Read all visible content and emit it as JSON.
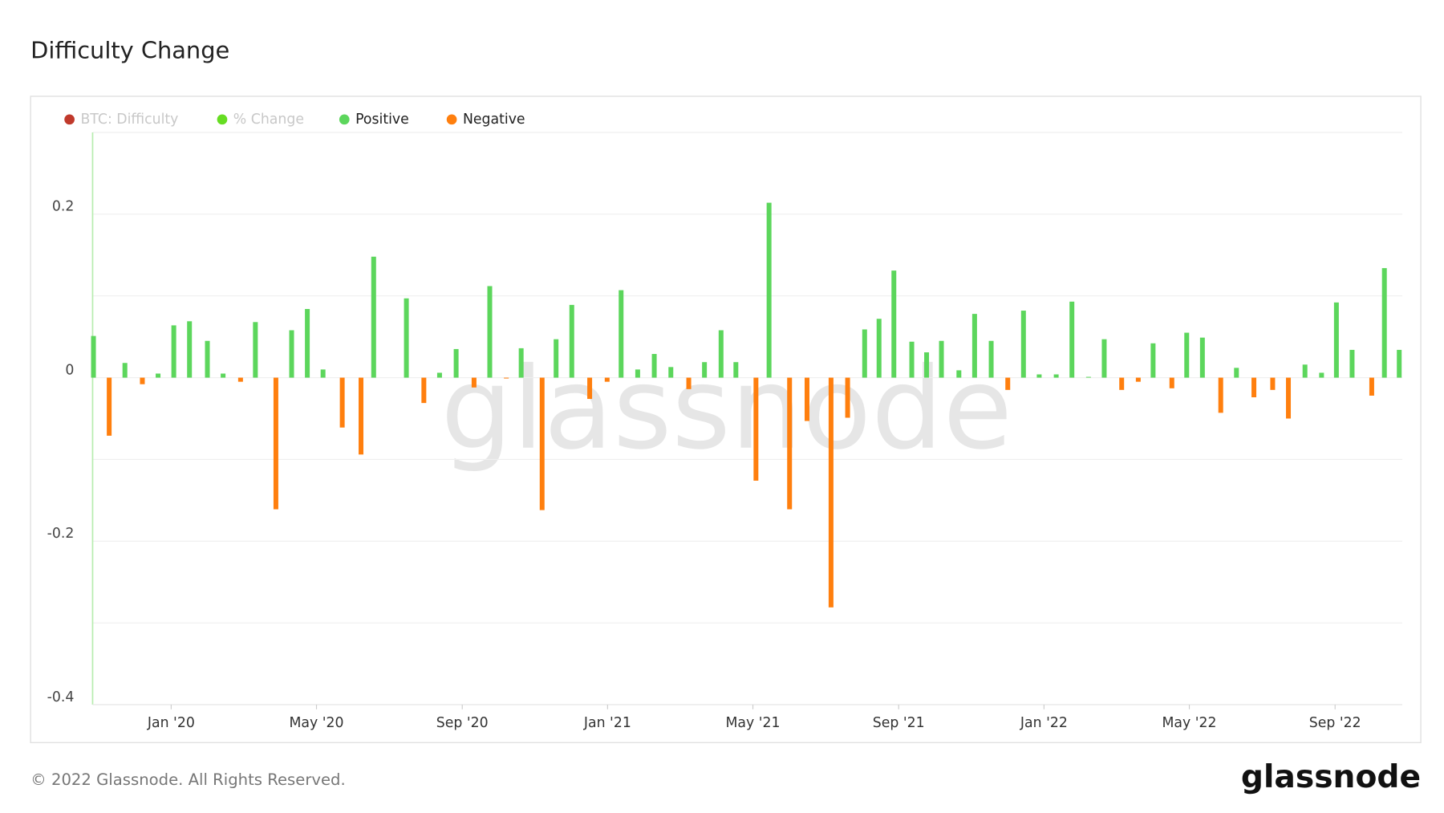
{
  "chart_data": {
    "type": "bar",
    "title": "Difficulty Change",
    "legend_hidden": [
      {
        "name": "BTC: Difficulty",
        "color": "#c0392b"
      },
      {
        "name": "% Change",
        "color": "#66dd22"
      }
    ],
    "x": [
      2019.822,
      2019.858,
      2019.894,
      2019.934,
      2019.97,
      2020.006,
      2020.042,
      2020.083,
      2020.119,
      2020.159,
      2020.193,
      2020.24,
      2020.276,
      2020.312,
      2020.348,
      2020.392,
      2020.435,
      2020.464,
      2020.539,
      2020.579,
      2020.615,
      2020.653,
      2020.694,
      2020.73,
      2020.768,
      2020.802,
      2020.85,
      2020.882,
      2020.918,
      2020.959,
      2020.999,
      2021.031,
      2021.069,
      2021.107,
      2021.145,
      2021.186,
      2021.222,
      2021.26,
      2021.294,
      2021.34,
      2021.37,
      2021.417,
      2021.457,
      2021.512,
      2021.55,
      2021.589,
      2021.622,
      2021.656,
      2021.697,
      2021.731,
      2021.765,
      2021.805,
      2021.841,
      2021.879,
      2021.917,
      2021.953,
      2021.989,
      2022.028,
      2022.064,
      2022.102,
      2022.138,
      2022.178,
      2022.216,
      2022.25,
      2022.293,
      2022.327,
      2022.363,
      2022.405,
      2022.441,
      2022.481,
      2022.524,
      2022.56,
      2022.598,
      2022.636,
      2022.67,
      2022.706,
      2022.751,
      2022.78,
      2022.814
    ],
    "series": [
      {
        "name": "Positive",
        "color": "#5cd65c",
        "values": [
          0.051,
          null,
          0.018,
          null,
          0.005,
          0.064,
          0.069,
          0.045,
          0.005,
          null,
          0.068,
          null,
          0.058,
          0.084,
          0.01,
          null,
          null,
          0.148,
          0.097,
          null,
          0.006,
          0.035,
          null,
          0.112,
          null,
          0.036,
          null,
          0.047,
          0.089,
          null,
          null,
          0.107,
          0.01,
          0.029,
          0.013,
          null,
          0.019,
          0.058,
          0.019,
          null,
          0.214,
          null,
          null,
          null,
          null,
          0.059,
          0.072,
          0.131,
          0.044,
          0.031,
          0.045,
          0.009,
          0.078,
          0.045,
          null,
          0.082,
          0.004,
          0.004,
          0.093,
          0.001,
          0.047,
          null,
          null,
          0.042,
          null,
          0.055,
          0.049,
          null,
          0.012,
          null,
          null,
          null,
          0.016,
          0.006,
          0.092,
          0.034,
          null,
          0.134,
          0.034
        ]
      },
      {
        "name": "Negative",
        "color": "#ff7f0e",
        "values": [
          null,
          -0.071,
          null,
          -0.008,
          null,
          null,
          null,
          null,
          null,
          -0.005,
          null,
          -0.161,
          null,
          null,
          null,
          -0.061,
          -0.094,
          null,
          null,
          -0.031,
          null,
          null,
          -0.012,
          null,
          -0.001,
          null,
          -0.162,
          null,
          null,
          -0.026,
          -0.005,
          null,
          null,
          null,
          null,
          -0.014,
          null,
          null,
          null,
          -0.126,
          null,
          -0.161,
          -0.053,
          -0.281,
          -0.049,
          null,
          null,
          null,
          null,
          null,
          null,
          null,
          null,
          null,
          -0.015,
          null,
          null,
          null,
          null,
          null,
          null,
          -0.015,
          -0.005,
          null,
          -0.013,
          null,
          null,
          -0.043,
          null,
          -0.024,
          -0.015,
          -0.05,
          null,
          null,
          null,
          null,
          -0.022,
          null,
          null
        ]
      }
    ],
    "xlim": [
      2019.82,
      2022.821
    ],
    "xticks": [
      {
        "value": 2020,
        "label": "Jan '20"
      },
      {
        "value": 2020.333,
        "label": "May '20"
      },
      {
        "value": 2020.667,
        "label": "Sep '20"
      },
      {
        "value": 2021,
        "label": "Jan '21"
      },
      {
        "value": 2021.333,
        "label": "May '21"
      },
      {
        "value": 2021.667,
        "label": "Sep '21"
      },
      {
        "value": 2022,
        "label": "Jan '22"
      },
      {
        "value": 2022.333,
        "label": "May '22"
      },
      {
        "value": 2022.667,
        "label": "Sep '22"
      }
    ],
    "ylim": [
      -0.4,
      0.3
    ],
    "yticks": [
      -0.4,
      -0.2,
      0,
      0.2
    ],
    "minor_yticks": [
      -0.3,
      -0.1,
      0.1,
      0.3
    ],
    "grid": true,
    "watermark": "glassnode"
  },
  "footer": {
    "copyright": "© 2022 Glassnode. All Rights Reserved.",
    "logo": "glassnode"
  }
}
